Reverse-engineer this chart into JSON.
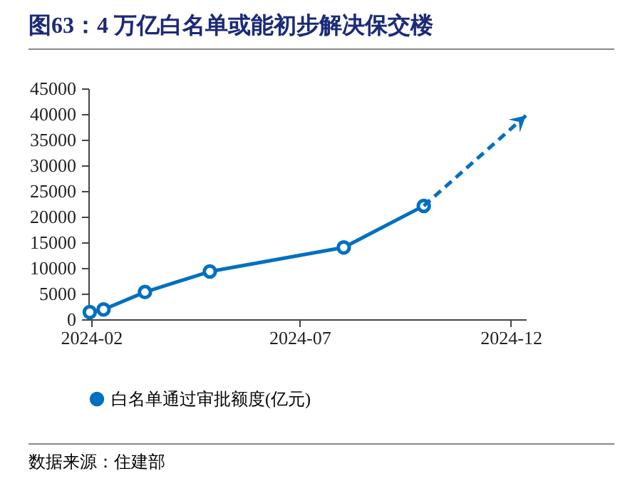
{
  "chart_data": {
    "type": "line",
    "title": "图63：4 万亿白名单或能初步解决保交楼",
    "annotations": [
      "数据来源：住建部"
    ],
    "xlim": [
      "2024-01-30",
      "2024-12-12"
    ],
    "xticks": [
      "2024-02",
      "2024-07",
      "2024-12"
    ],
    "ylim": [
      0,
      45000
    ],
    "yticks": [
      0,
      5000,
      10000,
      15000,
      20000,
      25000,
      30000,
      35000,
      40000,
      45000
    ],
    "grid": false,
    "legend": "bottom",
    "series": [
      {
        "name": "白名单通过审批额度(亿元)",
        "color": "#0070c0",
        "x": [
          "2024-01-31",
          "2024-02-10",
          "2024-03-11",
          "2024-04-27",
          "2024-08-02",
          "2024-09-29"
        ],
        "values": [
          1400,
          1900,
          5300,
          9300,
          14000,
          22100
        ],
        "marker": "circle",
        "line_style": "solid"
      },
      {
        "color": "#0070c0",
        "x": [
          "2024-09-29",
          "2024-12-12"
        ],
        "values": [
          22100,
          39700
        ],
        "marker": "none",
        "line_style": "dashed"
      }
    ]
  }
}
